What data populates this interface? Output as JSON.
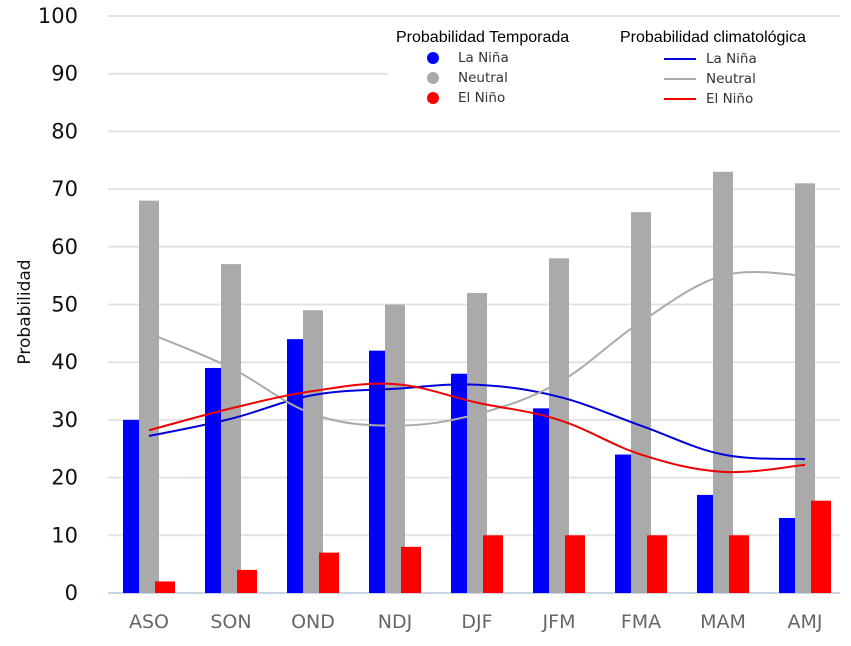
{
  "chart_data": {
    "type": "bar",
    "title": "",
    "xlabel": "",
    "ylabel": "Probabilidad",
    "ylim": [
      0,
      100
    ],
    "yticks": [
      "0",
      "10",
      "20",
      "30",
      "40",
      "50",
      "60",
      "70",
      "80",
      "90",
      "100"
    ],
    "grid": true,
    "categories": [
      "ASO",
      "SON",
      "OND",
      "NDJ",
      "DJF",
      "JFM",
      "FMA",
      "MAM",
      "AMJ"
    ],
    "series": [
      {
        "name": "La Niña",
        "kind": "bar",
        "color": "#0000ff",
        "values": [
          30,
          39,
          44,
          42,
          38,
          32,
          24,
          17,
          13
        ]
      },
      {
        "name": "Neutral",
        "kind": "bar",
        "color": "#aaaaaa",
        "values": [
          68,
          57,
          49,
          50,
          52,
          58,
          66,
          73,
          71
        ]
      },
      {
        "name": "El Niño",
        "kind": "bar",
        "color": "#ff0000",
        "values": [
          2,
          4,
          7,
          8,
          10,
          10,
          10,
          10,
          16
        ]
      }
    ],
    "lines": [
      {
        "name": "La Niña",
        "kind": "line",
        "color": "#0000dd",
        "values": [
          27.2,
          30.2,
          34.3,
          35.4,
          36.1,
          34.0,
          29.0,
          24.0,
          23.2
        ]
      },
      {
        "name": "Neutral",
        "kind": "line",
        "color": "#aaaaaa",
        "values": [
          45.0,
          39.0,
          31.0,
          29.0,
          31.0,
          36.5,
          47.0,
          55.0,
          55.0
        ]
      },
      {
        "name": "El Niño",
        "kind": "line",
        "color": "#ee0000",
        "values": [
          28.2,
          32.0,
          35.0,
          36.2,
          33.0,
          30.0,
          24.0,
          21.0,
          22.2
        ]
      }
    ],
    "legend": {
      "placement": "top-right",
      "groups": [
        {
          "title": "Probabilidad Temporada",
          "marker": "circle",
          "items": [
            "La Niña",
            "Neutral",
            "El Niño"
          ]
        },
        {
          "title": "Probabilidad climatológica",
          "marker": "line",
          "items": [
            "La Niña",
            "Neutral",
            "El Niño"
          ]
        }
      ]
    }
  }
}
